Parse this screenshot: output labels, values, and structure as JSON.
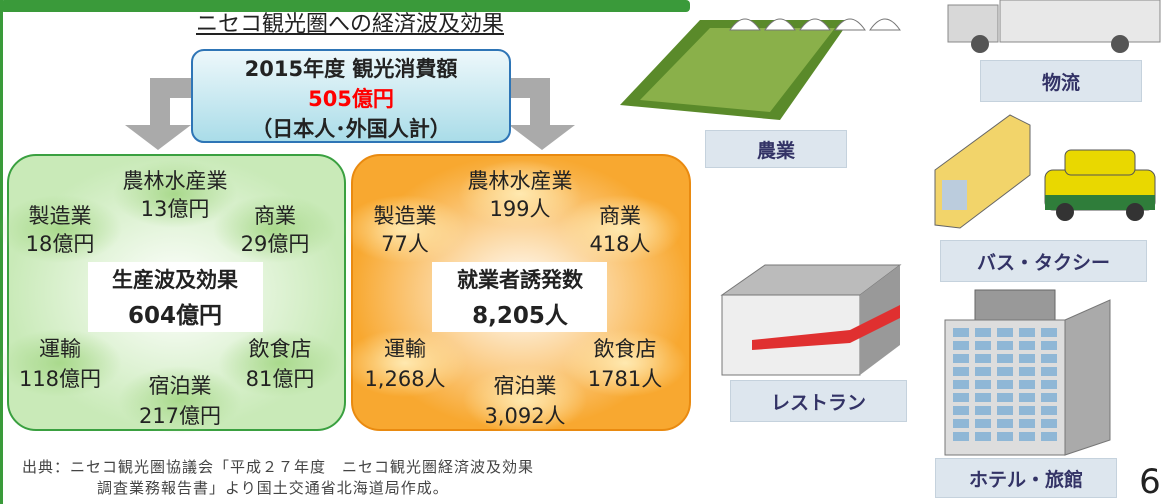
{
  "title": "ニセコ観光圏への経済波及効果",
  "consumption": {
    "label": "2015年度 観光消費額",
    "amount": "505億円",
    "note": "（日本人･外国人計）"
  },
  "production": {
    "title": "生産波及効果",
    "total": "604億円",
    "items": [
      {
        "name": "農林水産業",
        "value": "13億円"
      },
      {
        "name": "製造業",
        "value": "18億円"
      },
      {
        "name": "商業",
        "value": "29億円"
      },
      {
        "name": "運輸",
        "value": "118億円"
      },
      {
        "name": "飲食店",
        "value": "81億円"
      },
      {
        "name": "宿泊業",
        "value": "217億円"
      }
    ]
  },
  "employment": {
    "title": "就業者誘発数",
    "total": "8,205人",
    "items": [
      {
        "name": "農林水産業",
        "value": "199人"
      },
      {
        "name": "製造業",
        "value": "77人"
      },
      {
        "name": "商業",
        "value": "418人"
      },
      {
        "name": "運輸",
        "value": "1,268人"
      },
      {
        "name": "飲食店",
        "value": "1781人"
      },
      {
        "name": "宿泊業",
        "value": "3,092人"
      }
    ]
  },
  "source": [
    "出典：ニセコ観光圏協議会「平成２７年度　ニセコ観光圏経済波及効果",
    "調査業務報告書」より国土交通省北海道局作成。"
  ],
  "illustrations": [
    "農業",
    "物流",
    "バス・タクシー",
    "レストラン",
    "ホテル・旅館"
  ],
  "page_number": "6"
}
